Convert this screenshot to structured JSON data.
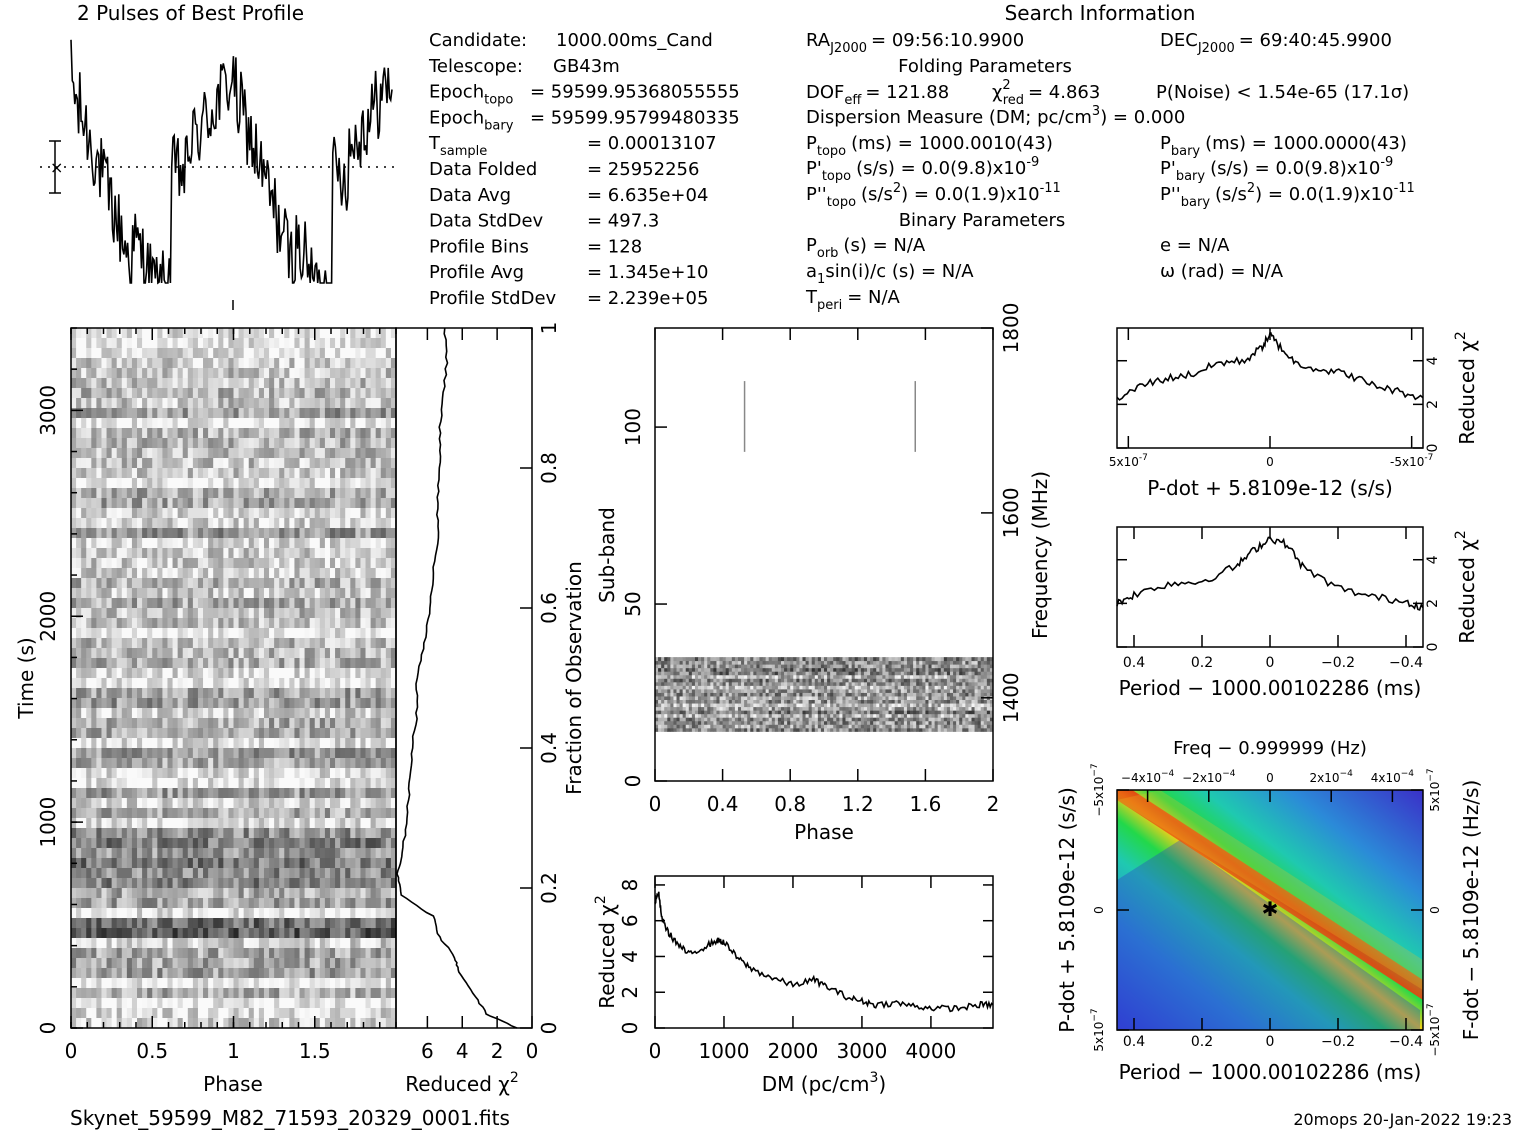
{
  "header": {
    "profile_title": "2 Pulses of Best Profile",
    "search_title": "Search Information",
    "folding_title": "Folding Parameters",
    "binary_title": "Binary Parameters"
  },
  "info_left": [
    {
      "label": "Candidate:",
      "value": "1000.00ms_Cand"
    },
    {
      "label": "Telescope:",
      "value": "GB43m"
    },
    {
      "label": "Epoch",
      "sub": "topo",
      "value": "= 59599.95368055555"
    },
    {
      "label": "Epoch",
      "sub": "bary",
      "value": "= 59599.95799480335"
    },
    {
      "label": "T",
      "sub": "sample",
      "value": "0.00013107"
    },
    {
      "label": "Data Folded",
      "value": "25952256"
    },
    {
      "label": "Data Avg",
      "value": "6.635e+04"
    },
    {
      "label": "Data StdDev",
      "value": "497.3"
    },
    {
      "label": "Profile Bins",
      "value": "128"
    },
    {
      "label": "Profile Avg",
      "value": "1.345e+10"
    },
    {
      "label": "Profile StdDev",
      "value": "2.239e+05"
    }
  ],
  "search": {
    "ra_label": "RA",
    "ra_sub": "J2000",
    "ra_value": "= 09:56:10.9900",
    "dec_label": "DEC",
    "dec_sub": "J2000",
    "dec_value": "= 69:40:45.9900",
    "dof_label": "DOF",
    "dof_sub": "eff",
    "dof_value": "= 121.88",
    "chi_label": "χ",
    "chi_sup": "2",
    "chi_sub": "red",
    "chi_value": "= 4.863",
    "pnoise": "P(Noise) < 1.54e-65   (17.1σ)",
    "dm_line": "Dispersion Measure (DM; pc/cm",
    "dm_sup": "3",
    "dm_value": ") = 0.000",
    "ptopo_label": "P",
    "ptopo_sub": "topo",
    "ptopo_value": "(ms) =  1000.0010(43)",
    "pbary_label": "P",
    "pbary_sub": "bary",
    "pbary_value": "(ms) =  1000.0000(43)",
    "pdtopo_label": "P'",
    "pdtopo_sub": "topo",
    "pdtopo_value": "(s/s) = 0.0(9.8)x10",
    "pdtopo_exp": "-9",
    "pdbary_label": "P'",
    "pdbary_sub": "bary",
    "pdbary_value": "(s/s) = 0.0(9.8)x10",
    "pdbary_exp": "-9",
    "pddtopo_label": "P''",
    "pddtopo_sub": "topo",
    "pddtopo_value": "(s/s",
    "pddtopo_sup2": "2",
    "pddtopo_value2": ") = 0.0(1.9)x10",
    "pddtopo_exp": "-11",
    "pddbary_label": "P''",
    "pddbary_sub": "bary",
    "pddbary_value": "(s/s",
    "pddbary_sup2": "2",
    "pddbary_value2": ") = 0.0(1.9)x10",
    "pddbary_exp": "-11",
    "porb_label": "P",
    "porb_sub": "orb",
    "porb_value": "(s) = N/A",
    "e_value": "e = N/A",
    "a1_label": "a",
    "a1_sub": "1",
    "a1_value": "sin(i)/c (s) = N/A",
    "omega_value": "ω (rad) = N/A",
    "tperi_label": "T",
    "tperi_sub": "peri",
    "tperi_value": "= N/A"
  },
  "footer": {
    "filename": "Skynet_59599_M82_71593_20329_0001.fits",
    "stamp": "20mops 20-Jan-2022 19:23"
  },
  "chart_data": [
    {
      "id": "profile",
      "type": "line",
      "title": "2 Pulses of Best Profile",
      "x_range": [
        0,
        2
      ],
      "description_values": {
        "pulses": 2,
        "bins": 128
      }
    },
    {
      "id": "time-phase",
      "type": "heatmap",
      "xlabel": "Phase",
      "ylabel": "Time (s)",
      "x_ticks": [
        "0",
        "0.5",
        "1",
        "1.5"
      ],
      "y_ticks": [
        "0",
        "1000",
        "2000",
        "3000"
      ],
      "xlim": [
        0,
        2
      ],
      "ylim": [
        0,
        3400
      ]
    },
    {
      "id": "time-chi2",
      "type": "line",
      "xlabel": "Reduced χ",
      "xlabel_sup": "2",
      "ylabel": "Fraction of Observation",
      "x_ticks": [
        "6",
        "4",
        "2",
        "0"
      ],
      "y_ticks": [
        "0",
        "0.2",
        "0.4",
        "0.6",
        "0.8",
        "1"
      ],
      "xlim": [
        7.8,
        0
      ],
      "ylim": [
        0,
        1
      ],
      "fraction": [
        0,
        0.02,
        0.05,
        0.08,
        0.1,
        0.13,
        0.16,
        0.19,
        0.22,
        0.25,
        0.3,
        0.35,
        0.4,
        0.45,
        0.5,
        0.55,
        0.6,
        0.65,
        0.7,
        0.75,
        0.8,
        0.85,
        0.9,
        0.95,
        1.0
      ],
      "chi2": [
        0.9,
        2.6,
        3.4,
        4.2,
        4.4,
        5.3,
        5.7,
        7.5,
        7.7,
        7.4,
        7.2,
        7.0,
        6.9,
        6.6,
        6.6,
        6.2,
        5.8,
        5.7,
        5.4,
        5.4,
        5.3,
        5.3,
        5.1,
        4.9,
        5.0
      ]
    },
    {
      "id": "subband-phase",
      "type": "heatmap",
      "xlabel": "Phase",
      "ylabel": "Sub-band",
      "y2label": "Frequency (MHz)",
      "x_ticks": [
        "0",
        "0.4",
        "0.8",
        "1.2",
        "1.6",
        "2"
      ],
      "y_ticks": [
        "0",
        "50",
        "100"
      ],
      "y2_ticks": [
        "1400",
        "1600",
        "1800"
      ],
      "xlim": [
        0,
        2
      ],
      "ylim": [
        0,
        128
      ],
      "y2lim": [
        1310,
        1800
      ],
      "active_subbands": [
        14,
        35
      ]
    },
    {
      "id": "dm-chi2",
      "type": "line",
      "xlabel": "DM (pc/cm",
      "xlabel_sup": "3",
      "xlabel_end": ")",
      "ylabel": "Reduced χ",
      "ylabel_sup": "2",
      "x_ticks": [
        "0",
        "1000",
        "2000",
        "3000",
        "4000"
      ],
      "y_ticks": [
        "0",
        "2",
        "4",
        "6",
        "8"
      ],
      "xlim": [
        0,
        4900
      ],
      "ylim": [
        0,
        8.5
      ],
      "x": [
        0,
        50,
        100,
        200,
        350,
        500,
        700,
        900,
        1000,
        1200,
        1400,
        1700,
        2000,
        2300,
        2500,
        2800,
        3000,
        3200,
        3500,
        3800,
        4100,
        4400,
        4700,
        4900
      ],
      "y": [
        7.0,
        7.6,
        6.1,
        5.3,
        4.6,
        4.1,
        4.5,
        4.9,
        4.8,
        3.9,
        3.3,
        2.8,
        2.4,
        2.7,
        2.3,
        1.7,
        1.5,
        1.3,
        1.4,
        1.2,
        1.1,
        1.1,
        1.3,
        1.3
      ]
    },
    {
      "id": "pdot-chi2",
      "type": "line",
      "xlabel": "P-dot + 5.8109e-12 (s/s)",
      "ylabel": "Reduced χ",
      "ylabel_sup": "2",
      "x_ticks": [
        "5x10",
        "0",
        "-5x10"
      ],
      "x_tick_exp": "-7",
      "y_ticks": [
        "0",
        "2",
        "4"
      ],
      "xlim": [
        5.4e-07,
        -5.4e-07
      ],
      "ylim": [
        0,
        5.5
      ],
      "x": [
        5.4e-07,
        4.5e-07,
        3.6e-07,
        2.7e-07,
        1.8e-07,
        9e-08,
        3e-08,
        0,
        -3e-08,
        -9e-08,
        -1.8e-07,
        -2.7e-07,
        -3.6e-07,
        -4.5e-07,
        -5.4e-07
      ],
      "y": [
        2.2,
        2.9,
        3.2,
        3.4,
        3.9,
        4.0,
        4.6,
        5.2,
        4.7,
        3.9,
        3.6,
        3.4,
        2.9,
        2.6,
        2.3
      ]
    },
    {
      "id": "period-chi2",
      "type": "line",
      "xlabel": "Period − 1000.00102286 (ms)",
      "ylabel": "Reduced χ",
      "ylabel_sup": "2",
      "x_ticks": [
        "0.4",
        "0.2",
        "0",
        "−0.2",
        "−0.4"
      ],
      "y_ticks": [
        "0",
        "2",
        "4"
      ],
      "xlim": [
        0.45,
        -0.45
      ],
      "ylim": [
        0,
        5.5
      ],
      "x": [
        0.45,
        0.4,
        0.3,
        0.2,
        0.1,
        0.05,
        0,
        -0.05,
        -0.1,
        -0.2,
        -0.3,
        -0.4,
        -0.45
      ],
      "y": [
        2.0,
        2.4,
        2.9,
        3.0,
        3.7,
        4.4,
        5.0,
        4.7,
        3.6,
        2.7,
        2.3,
        2.1,
        1.8
      ]
    },
    {
      "id": "p-pdot",
      "type": "heatmap",
      "title": "Freq − 0.999999 (Hz)",
      "xlabel": "Period − 1000.00102286 (ms)",
      "ylabel": "P-dot + 5.8109e-12 (s/s)",
      "y2label": "F-dot − 5.8109e-12 (Hz/s)",
      "x_ticks": [
        "0.4",
        "0.2",
        "0",
        "−0.2",
        "−0.4"
      ],
      "top_ticks": [
        "−4x10",
        "−2x10",
        "0",
        "2x10",
        "4x10"
      ],
      "top_tick_exp": "−4",
      "y_ticks": [
        "5x10",
        "0",
        "−5x10"
      ],
      "y_tick_exp": "−7",
      "y2_ticks": [
        "−5x10",
        "0",
        "5x10"
      ],
      "xlim": [
        0.45,
        -0.45
      ],
      "ylim": [
        -5.4e-07,
        5.4e-07
      ]
    }
  ]
}
